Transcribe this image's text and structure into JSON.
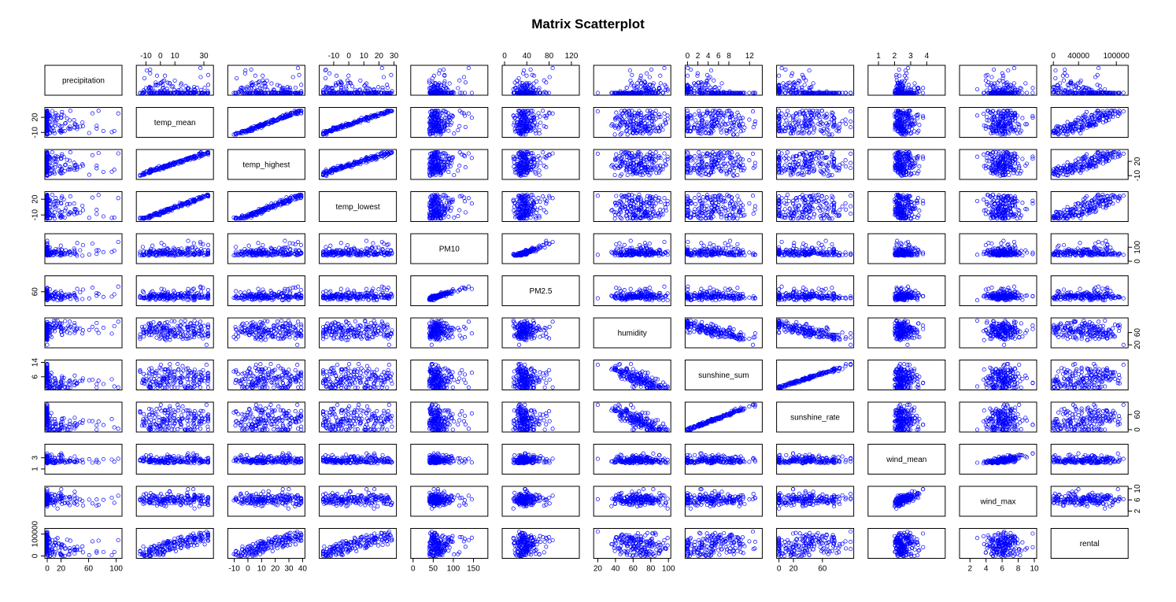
{
  "chart_data": {
    "type": "scatter",
    "subtype": "scatterplot-matrix",
    "title": "Matrix Scatterplot",
    "point_color": "#0000ff",
    "point_marker": "open-circle",
    "variables": [
      {
        "name": "precipitation",
        "range": [
          0,
          105
        ],
        "ticks": [
          0,
          20,
          60,
          100
        ],
        "tick_labels": [
          "0",
          "20",
          "60",
          "100"
        ],
        "tick_side": "bottom"
      },
      {
        "name": "temp_mean",
        "range": [
          -15,
          35
        ],
        "ticks": [
          -10,
          0,
          10,
          30
        ],
        "tick_labels": [
          "-10",
          "0",
          "10",
          "30"
        ],
        "tick_side": "top",
        "left_ticks": [
          -10,
          20
        ],
        "left_tick_labels": [
          "-10",
          "20"
        ]
      },
      {
        "name": "temp_highest",
        "range": [
          -13,
          40
        ],
        "ticks": [
          -10,
          0,
          10,
          20,
          30,
          40
        ],
        "tick_labels": [
          "-10",
          "0",
          "10",
          "20",
          "30",
          "40"
        ],
        "tick_side": "bottom",
        "right_ticks": [
          -10,
          20
        ],
        "right_tick_labels": [
          "-10",
          "20"
        ]
      },
      {
        "name": "temp_lowest",
        "range": [
          -18,
          30
        ],
        "ticks": [
          -10,
          0,
          10,
          20,
          30
        ],
        "tick_labels": [
          "-10",
          "0",
          "10",
          "20",
          "30"
        ],
        "tick_side": "top",
        "left_ticks": [
          -10,
          20
        ],
        "left_tick_labels": [
          "-10",
          "20"
        ]
      },
      {
        "name": "PM10",
        "range": [
          0,
          180
        ],
        "ticks": [
          0,
          50,
          100,
          150
        ],
        "tick_labels": [
          "0",
          "50",
          "100",
          "150"
        ],
        "tick_side": "bottom",
        "right_ticks": [
          0,
          100
        ],
        "right_tick_labels": [
          "0",
          "100"
        ]
      },
      {
        "name": "PM2.5",
        "range": [
          0,
          130
        ],
        "ticks": [
          0,
          40,
          80,
          120
        ],
        "tick_labels": [
          "0",
          "40",
          "80",
          "120"
        ],
        "tick_side": "top",
        "left_ticks": [
          60
        ],
        "left_tick_labels": [
          "60"
        ]
      },
      {
        "name": "humidity",
        "range": [
          18,
          100
        ],
        "ticks": [
          20,
          40,
          60,
          80,
          100
        ],
        "tick_labels": [
          "20",
          "40",
          "60",
          "80",
          "100"
        ],
        "tick_side": "bottom",
        "right_ticks": [
          20,
          60
        ],
        "right_tick_labels": [
          "20",
          "60"
        ]
      },
      {
        "name": "sunshine_sum",
        "range": [
          0,
          14
        ],
        "ticks": [
          0,
          2,
          4,
          6,
          8,
          12
        ],
        "tick_labels": [
          "0",
          "2",
          "4",
          "6",
          "8",
          "12"
        ],
        "tick_side": "top",
        "left_ticks": [
          6,
          14
        ],
        "left_tick_labels": [
          "6",
          "14"
        ]
      },
      {
        "name": "sunshine_rate",
        "range": [
          0,
          100
        ],
        "ticks": [
          0,
          20,
          60
        ],
        "tick_labels": [
          "0",
          "20",
          "60"
        ],
        "tick_side": "bottom",
        "right_ticks": [
          0,
          60
        ],
        "right_tick_labels": [
          "0",
          "60"
        ]
      },
      {
        "name": "wind_mean",
        "range": [
          0.5,
          5
        ],
        "ticks": [
          1,
          2,
          3,
          4
        ],
        "tick_labels": [
          "1",
          "2",
          "3",
          "4"
        ],
        "tick_side": "top",
        "left_ticks": [
          1,
          3
        ],
        "left_tick_labels": [
          "1",
          "3"
        ]
      },
      {
        "name": "wind_max",
        "range": [
          1,
          10
        ],
        "ticks": [
          2,
          4,
          6,
          8,
          10
        ],
        "tick_labels": [
          "2",
          "4",
          "6",
          "8",
          "10"
        ],
        "tick_side": "bottom",
        "right_ticks": [
          2,
          6,
          10
        ],
        "right_tick_labels": [
          "2",
          "6",
          "10"
        ]
      },
      {
        "name": "rental",
        "range": [
          0,
          115000
        ],
        "ticks": [
          0,
          40000,
          100000
        ],
        "tick_labels": [
          "0",
          "40000",
          "100000"
        ],
        "tick_side": "top",
        "left_ticks": [
          0,
          100000
        ],
        "left_tick_labels": [
          "0",
          "100000"
        ]
      }
    ],
    "sample_size": 180,
    "seed": 20240501
  }
}
